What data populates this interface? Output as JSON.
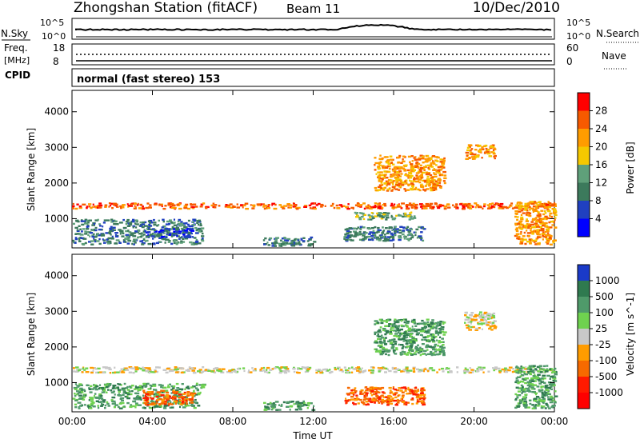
{
  "header": {
    "station": "Zhongshan Station (fitACF)",
    "beam": "Beam 11",
    "date": "10/Dec/2010"
  },
  "top_panels": {
    "nsky_label": "N.Sky",
    "nsearch_label": "N.Search",
    "nsky_ticks": [
      "10^5",
      "10^0"
    ],
    "nsearch_ticks": [
      "10^5",
      "10^0"
    ],
    "freq_label": "Freq.",
    "freq_unit": "[MHz]",
    "freq_ticks": [
      "18",
      "8"
    ],
    "nave_label": "Nave",
    "nave_ticks": [
      "60",
      "0"
    ],
    "cpid_label": "CPID",
    "cpid_text": "normal (fast stereo) 153"
  },
  "chart_data": [
    {
      "type": "heatmap",
      "name": "power",
      "ylabel": "Slant Range [km]",
      "xlabel": "",
      "x_ticks": [
        "00:00",
        "04:00",
        "08:00",
        "12:00",
        "16:00",
        "20:00",
        "00:00"
      ],
      "y_ticks": [
        "1000",
        "2000",
        "3000",
        "4000"
      ],
      "xlim_hours": [
        0,
        24
      ],
      "ylim_km": [
        180,
        4600
      ],
      "colorbar": {
        "label": "Power [dB]",
        "ticks": [
          "28",
          "24",
          "20",
          "16",
          "12",
          "8",
          "4"
        ],
        "colors": [
          "#ff0000",
          "#f75a00",
          "#ff9c00",
          "#f5c800",
          "#5fa07a",
          "#3c7a5c",
          "#2040c0",
          "#0000ff"
        ]
      },
      "features": [
        {
          "hours": [
            0,
            24
          ],
          "range_km": [
            1300,
            1460
          ],
          "level": 1
        },
        {
          "hours": [
            0,
            6.5
          ],
          "range_km": [
            300,
            1000
          ],
          "level": 5
        },
        {
          "hours": [
            3.5,
            6
          ],
          "range_km": [
            500,
            750
          ],
          "level": 6
        },
        {
          "hours": [
            9.5,
            12
          ],
          "range_km": [
            250,
            500
          ],
          "level": 5
        },
        {
          "hours": [
            13.5,
            17.5
          ],
          "range_km": [
            400,
            800
          ],
          "level": 5
        },
        {
          "hours": [
            14,
            17
          ],
          "range_km": [
            1000,
            1200
          ],
          "level": 4
        },
        {
          "hours": [
            15,
            18.5
          ],
          "range_km": [
            1800,
            2800
          ],
          "level": 2
        },
        {
          "hours": [
            19.5,
            21
          ],
          "range_km": [
            2700,
            3100
          ],
          "level": 2
        },
        {
          "hours": [
            22,
            24
          ],
          "range_km": [
            300,
            1500
          ],
          "level": 2
        }
      ]
    },
    {
      "type": "heatmap",
      "name": "velocity",
      "ylabel": "Slant Range [km]",
      "xlabel": "Time UT",
      "x_ticks": [
        "00:00",
        "04:00",
        "08:00",
        "12:00",
        "16:00",
        "20:00",
        "00:00"
      ],
      "y_ticks": [
        "1000",
        "2000",
        "3000",
        "4000"
      ],
      "xlim_hours": [
        0,
        24
      ],
      "ylim_km": [
        180,
        4600
      ],
      "colorbar": {
        "label": "Velocity [m s^-1]",
        "ticks": [
          "1000",
          "500",
          "100",
          "25",
          "-25",
          "-100",
          "-500",
          "-1000"
        ],
        "colors": [
          "#1a3ac8",
          "#2f7a4f",
          "#4f9a6a",
          "#6fd24f",
          "#c8c8c8",
          "#ff9c00",
          "#f76a00",
          "#ff1a00",
          "#ff0000"
        ]
      },
      "features": [
        {
          "hours": [
            0,
            24
          ],
          "range_km": [
            1300,
            1460
          ],
          "level": 4
        },
        {
          "hours": [
            0,
            6.5
          ],
          "range_km": [
            300,
            1000
          ],
          "level": 2
        },
        {
          "hours": [
            3.5,
            6
          ],
          "range_km": [
            400,
            800
          ],
          "level": 6
        },
        {
          "hours": [
            9.5,
            12
          ],
          "range_km": [
            250,
            500
          ],
          "level": 2
        },
        {
          "hours": [
            13.5,
            17.5
          ],
          "range_km": [
            400,
            900
          ],
          "level": 6
        },
        {
          "hours": [
            15,
            18.5
          ],
          "range_km": [
            1800,
            2800
          ],
          "level": 2
        },
        {
          "hours": [
            19.5,
            21
          ],
          "range_km": [
            2500,
            3000
          ],
          "level": 4
        },
        {
          "hours": [
            22,
            24
          ],
          "range_km": [
            300,
            1500
          ],
          "level": 2
        }
      ]
    }
  ]
}
